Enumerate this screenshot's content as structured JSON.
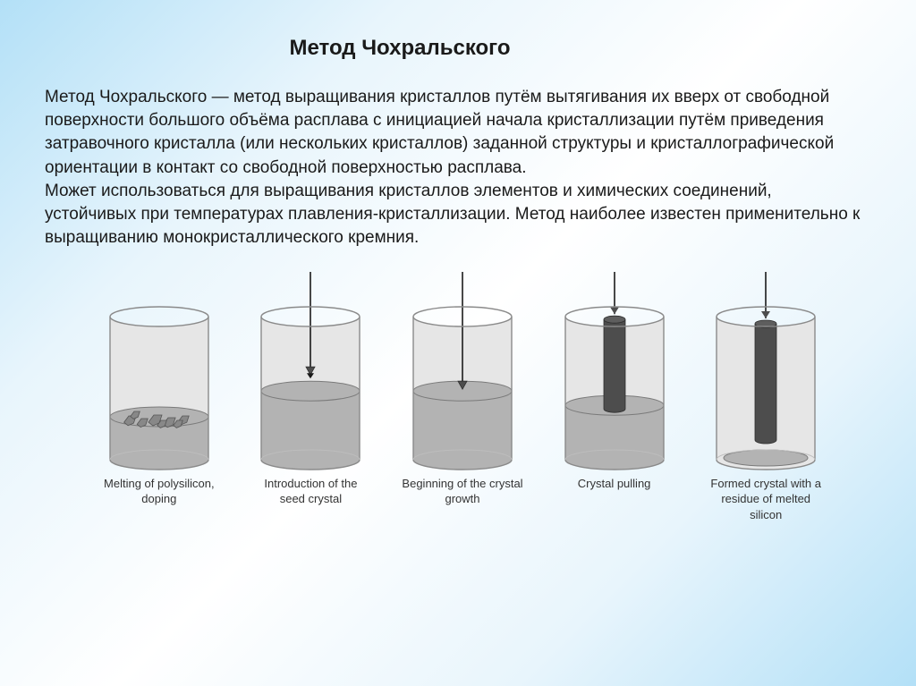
{
  "title": "Метод Чохральского",
  "paragraph": "Метод Чохральского — метод выращивания кристаллов путём вытягивания их вверх от свободной поверхности большого объёма расплава с инициацией начала кристаллизации путём приведения затравочного кристалла (или нескольких кристаллов) заданной структуры и кристаллографической ориентации в контакт со свободной поверхностью расплава.\nМожет использоваться для выращивания кристаллов элементов и химических соединений, устойчивых при температурах плавления-кристаллизации. Метод наиболее известен применительно к выращиванию монокристаллического кремния.",
  "diagram": {
    "vessel": {
      "width": 110,
      "height": 160,
      "cylFill": "#e6e6e6",
      "cylStroke": "#8a8a8a",
      "cylStrokeTop": "#bdbdbd",
      "meltFill": "#b3b3b3",
      "meltStroke": "#7a7a7a",
      "crystalFill": "#4d4d4d",
      "crystalStroke": "#2e2e2e",
      "rodStroke": "#1a1a1a",
      "rodTopExtra": 50
    },
    "stages": [
      {
        "id": "stage-1-melting",
        "caption": "Melting of polysilicon, doping",
        "meltFrac": 0.3,
        "rod": false,
        "crystalLength": 0,
        "crystalWidth": 0,
        "chunks": true,
        "plate": false
      },
      {
        "id": "stage-2-seed-intro",
        "caption": "Introduction of the seed crystal",
        "meltFrac": 0.48,
        "rod": true,
        "rodTouch": false,
        "seedOnly": true,
        "crystalLength": 0,
        "crystalWidth": 0,
        "chunks": false,
        "plate": false
      },
      {
        "id": "stage-3-begin-growth",
        "caption": "Beginning of the crystal growth",
        "meltFrac": 0.48,
        "rod": true,
        "rodTouch": true,
        "seedOnly": true,
        "crystalLength": 0,
        "crystalWidth": 0,
        "chunks": false,
        "plate": false
      },
      {
        "id": "stage-4-pulling",
        "caption": "Crystal pulling",
        "meltFrac": 0.38,
        "rod": true,
        "rodTouch": true,
        "seedOnly": false,
        "crystalLength": 100,
        "crystalWidth": 24,
        "chunks": false,
        "plate": false
      },
      {
        "id": "stage-5-formed",
        "caption": "Formed crystal with a residue of melted silicon",
        "meltFrac": 0.0,
        "rod": true,
        "rodTouch": false,
        "seedOnly": false,
        "crystalLength": 130,
        "crystalWidth": 24,
        "chunks": false,
        "plate": true
      }
    ]
  },
  "colors": {
    "textColor": "#1a1a1a",
    "captionColor": "#333333"
  },
  "fonts": {
    "titleSize": 24,
    "bodySize": 19,
    "captionSize": 13
  }
}
